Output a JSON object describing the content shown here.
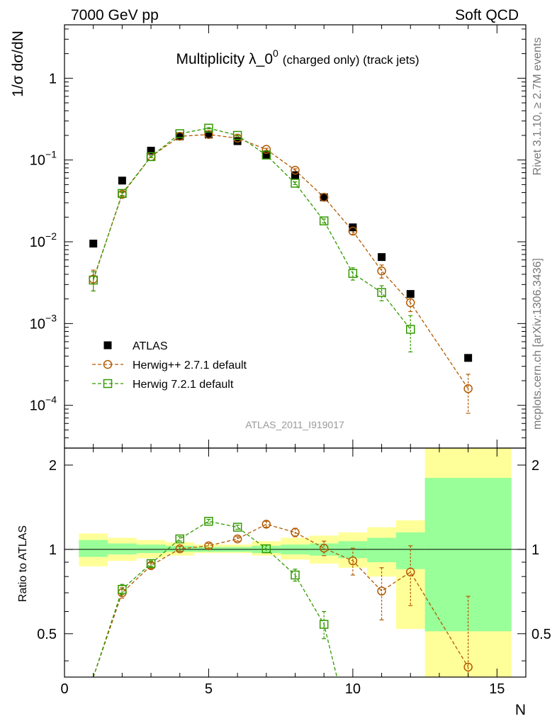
{
  "header": {
    "left": "7000 GeV pp",
    "right": "Soft QCD"
  },
  "side_text": {
    "rivet": "Rivet 3.1.10, ≥ 2.7M events",
    "mcplots": "mcplots.cern.ch [arXiv:1306.3436]"
  },
  "chart_data": {
    "type": "scatter",
    "title": "Multiplicity λ_0⁰ (charged only) (track jets)",
    "title_parts": {
      "main": "Multiplicity λ_0",
      "sup": "0",
      "tail": "(charged only) (track jets)"
    },
    "xlabel": "N",
    "ylabel": "1/σ dσ/dN",
    "ratio_ylabel": "Ratio to ATLAS",
    "analysis_label": "ATLAS_2011_I919017",
    "xlim": [
      0,
      16
    ],
    "ylim": [
      3e-05,
      4.5
    ],
    "y_scale": "log",
    "ratio_ylim": [
      0.35,
      2.3
    ],
    "x_ticks": [
      "0",
      "5",
      "10",
      "15"
    ],
    "y_ticks": [
      {
        "base": "10",
        "exp": "−4",
        "v": 0.0001
      },
      {
        "base": "10",
        "exp": "−3",
        "v": 0.001
      },
      {
        "base": "10",
        "exp": "−2",
        "v": 0.01
      },
      {
        "base": "10",
        "exp": "−1",
        "v": 0.1
      },
      {
        "base": "1",
        "exp": "",
        "v": 1
      }
    ],
    "ratio_ticks": [
      "0.5",
      "1",
      "2"
    ],
    "legend": {
      "placement": "lower-left",
      "entries": [
        "ATLAS",
        "Herwig++ 2.7.1 default",
        "Herwig 7.2.1 default"
      ]
    },
    "colors": {
      "data": "#000000",
      "herwigpp": "#b35900",
      "herwig7": "#339900",
      "band_inner": "#99ff99",
      "band_outer": "#ffff99"
    },
    "series": [
      {
        "name": "ATLAS",
        "x": [
          1,
          2,
          3,
          4,
          5,
          6,
          7,
          8,
          9,
          10,
          11,
          12,
          14
        ],
        "y": [
          0.0095,
          0.056,
          0.13,
          0.195,
          0.205,
          0.17,
          0.115,
          0.065,
          0.035,
          0.015,
          0.0065,
          0.0023,
          0.00038
        ]
      },
      {
        "name": "Herwig++ 2.7.1 default",
        "x": [
          1,
          2,
          3,
          4,
          5,
          6,
          7,
          8,
          9,
          10,
          11,
          12,
          14
        ],
        "y": [
          0.0035,
          0.038,
          0.11,
          0.195,
          0.205,
          0.185,
          0.135,
          0.075,
          0.035,
          0.0135,
          0.0044,
          0.0018,
          0.00016
        ],
        "err": [
          0.001,
          0.002,
          0.003,
          0.004,
          0.004,
          0.004,
          0.004,
          0.003,
          0.002,
          0.0012,
          0.0008,
          0.0004,
          8e-05
        ]
      },
      {
        "name": "Herwig 7.2.1 default",
        "x": [
          1,
          2,
          3,
          4,
          5,
          6,
          7,
          8,
          9,
          10,
          11,
          12
        ],
        "y": [
          0.0034,
          0.039,
          0.11,
          0.21,
          0.245,
          0.2,
          0.115,
          0.052,
          0.018,
          0.0041,
          0.0024,
          0.00085
        ],
        "err": [
          0.0009,
          0.002,
          0.003,
          0.004,
          0.004,
          0.004,
          0.003,
          0.002,
          0.001,
          0.0007,
          0.0005,
          0.0004
        ]
      }
    ],
    "ratio": {
      "band_edges": [
        0.5,
        1.5,
        2.5,
        3.5,
        4.5,
        5.5,
        6.5,
        7.5,
        8.5,
        9.5,
        10.5,
        11.5,
        12.5,
        15.5
      ],
      "inner": [
        [
          0.94,
          1.08
        ],
        [
          0.96,
          1.05
        ],
        [
          0.97,
          1.04
        ],
        [
          0.98,
          1.03
        ],
        [
          0.98,
          1.02
        ],
        [
          0.98,
          1.02
        ],
        [
          0.97,
          1.03
        ],
        [
          0.96,
          1.04
        ],
        [
          0.95,
          1.05
        ],
        [
          0.93,
          1.07
        ],
        [
          0.9,
          1.1
        ],
        [
          0.85,
          1.15
        ],
        [
          0.51,
          1.8
        ]
      ],
      "outer": [
        [
          0.87,
          1.14
        ],
        [
          0.91,
          1.1
        ],
        [
          0.93,
          1.08
        ],
        [
          0.95,
          1.06
        ],
        [
          0.97,
          1.04
        ],
        [
          0.97,
          1.04
        ],
        [
          0.95,
          1.07
        ],
        [
          0.92,
          1.1
        ],
        [
          0.89,
          1.12
        ],
        [
          0.86,
          1.15
        ],
        [
          0.8,
          1.2
        ],
        [
          0.52,
          1.27
        ],
        [
          0.3,
          2.3
        ]
      ],
      "herwigpp": [
        0.3,
        0.7,
        0.875,
        1.005,
        1.03,
        1.09,
        1.23,
        1.15,
        1.01,
        0.91,
        0.71,
        0.83,
        0.38
      ],
      "herwigpp_err": [
        0.05,
        0.03,
        0.02,
        0.02,
        0.02,
        0.02,
        0.03,
        0.04,
        0.06,
        0.1,
        0.15,
        0.2,
        0.3
      ],
      "herwig7": [
        0.3,
        0.72,
        0.89,
        1.09,
        1.26,
        1.2,
        1.005,
        0.81,
        0.54,
        0.3
      ],
      "herwig7_err": [
        0.05,
        0.03,
        0.02,
        0.02,
        0.02,
        0.02,
        0.03,
        0.04,
        0.06,
        0.05
      ]
    }
  }
}
